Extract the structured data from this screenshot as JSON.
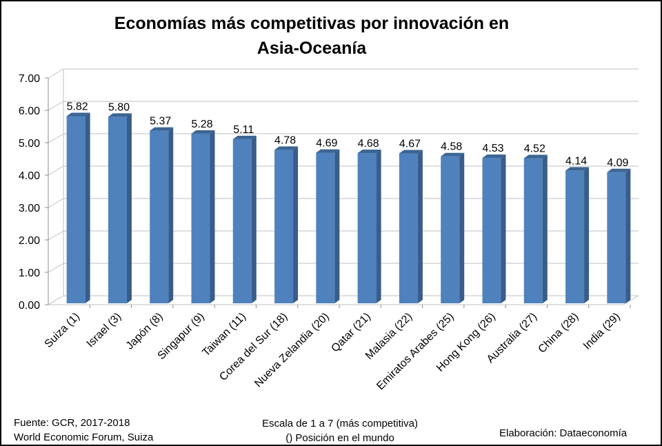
{
  "chart_data": {
    "type": "bar",
    "title_line1": "Economías más competitivas por innovación en",
    "title_line2": "Asia-Oceanía",
    "categories": [
      "Suiza (1)",
      "Israel (3)",
      "Japón (8)",
      "Singapur (9)",
      "Taiwan (11)",
      "Corea del Sur (18)",
      "Nueva Zelandia (20)",
      "Qatar (21)",
      "Malasia (22)",
      "Emiratos Arabes (25)",
      "Hong Kong (26)",
      "Australia (27)",
      "China (28)",
      "India (29)"
    ],
    "values": [
      5.82,
      5.8,
      5.37,
      5.28,
      5.11,
      4.78,
      4.69,
      4.68,
      4.67,
      4.58,
      4.53,
      4.52,
      4.14,
      4.09
    ],
    "value_labels": [
      "5.82",
      "5.80",
      "5.37",
      "5.28",
      "5.11",
      "4.78",
      "4.69",
      "4.68",
      "4.67",
      "4.58",
      "4.53",
      "4.52",
      "4.14",
      "4.09"
    ],
    "y_ticks": [
      "0.00",
      "1.00",
      "2.00",
      "3.00",
      "4.00",
      "5.00",
      "6.00",
      "7.00"
    ],
    "ylim": [
      0,
      7
    ],
    "grid": true,
    "legend": "none",
    "bar_color": "#4f81bd",
    "bar_side_color": "#385d8a",
    "bar_top_color": "#3b6592"
  },
  "footer": {
    "source_line1": "Fuente:  GCR, 2017-2018",
    "source_line2": "World Economic Forum, Suiza",
    "note_line1": "Escala de 1 a 7 (más competitiva)",
    "note_line2": "() Posición en el mundo",
    "credit": "Elaboración: Dataeconomía"
  }
}
